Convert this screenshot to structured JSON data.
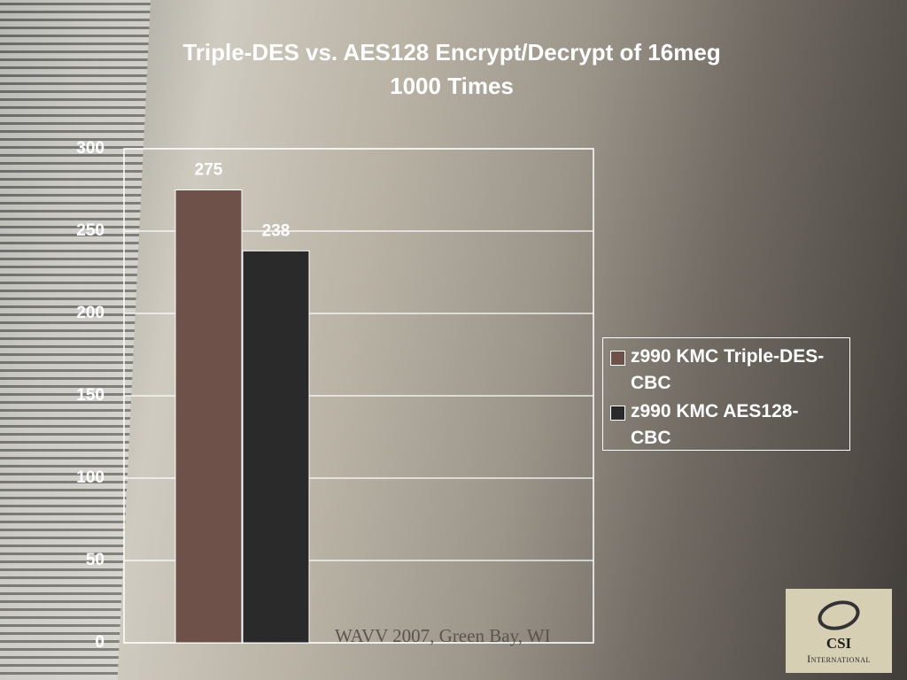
{
  "chart_data": {
    "type": "bar",
    "title": "Triple-DES vs. AES128 Encrypt/Decrypt of 16meg 1000 Times",
    "categories": [
      null
    ],
    "series": [
      {
        "name": "z990 KMC Triple-DES-CBC",
        "color": "#6e5148",
        "values": [
          275
        ]
      },
      {
        "name": "z990 KMC AES128-CBC",
        "color": "#2a2a2a",
        "values": [
          238
        ]
      }
    ],
    "ylim": [
      0,
      300
    ],
    "yticks": [
      0,
      50,
      100,
      150,
      200,
      250,
      300
    ],
    "grid": true,
    "legend": "right"
  },
  "footer": "WAVV 2007, Green Bay, WI",
  "logo": {
    "name": "CSI",
    "subtitle": "International"
  }
}
